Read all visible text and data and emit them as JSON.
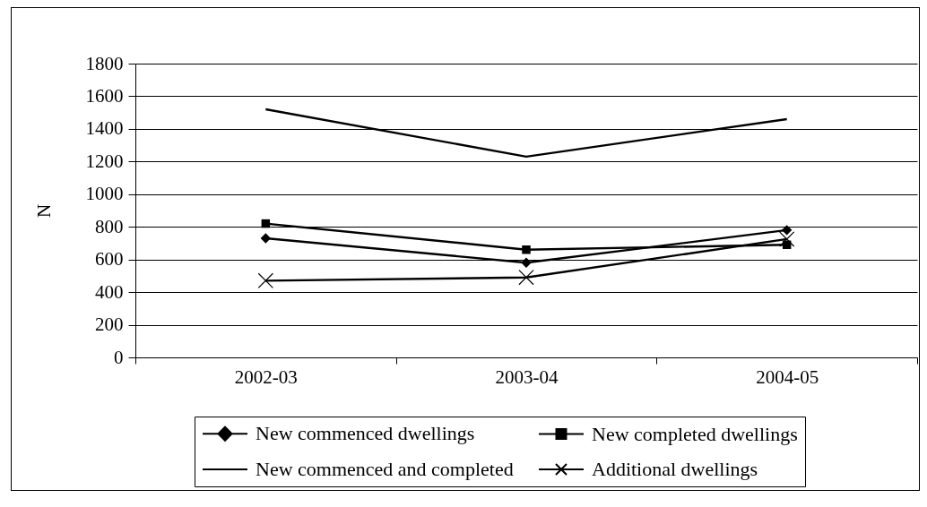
{
  "chart_data": {
    "type": "line",
    "categories": [
      "2002-03",
      "2003-04",
      "2004-05"
    ],
    "ylabel": "N",
    "ylim": [
      0,
      1800
    ],
    "yticks": [
      0,
      200,
      400,
      600,
      800,
      1000,
      1200,
      1400,
      1600,
      1800
    ],
    "grid": "y",
    "legend": "bottom",
    "series": [
      {
        "name": "New commenced dwellings",
        "color": "#000000",
        "marker": "diamond",
        "values": [
          730,
          580,
          780
        ]
      },
      {
        "name": "New completed dwellings",
        "color": "#000000",
        "marker": "square",
        "values": [
          820,
          660,
          690
        ]
      },
      {
        "name": "New commenced and completed",
        "color": "#000000",
        "marker": "none",
        "values": [
          1520,
          1230,
          1460
        ]
      },
      {
        "name": "Additional dwellings",
        "color": "#000000",
        "marker": "cross",
        "values": [
          470,
          490,
          725
        ]
      }
    ]
  }
}
